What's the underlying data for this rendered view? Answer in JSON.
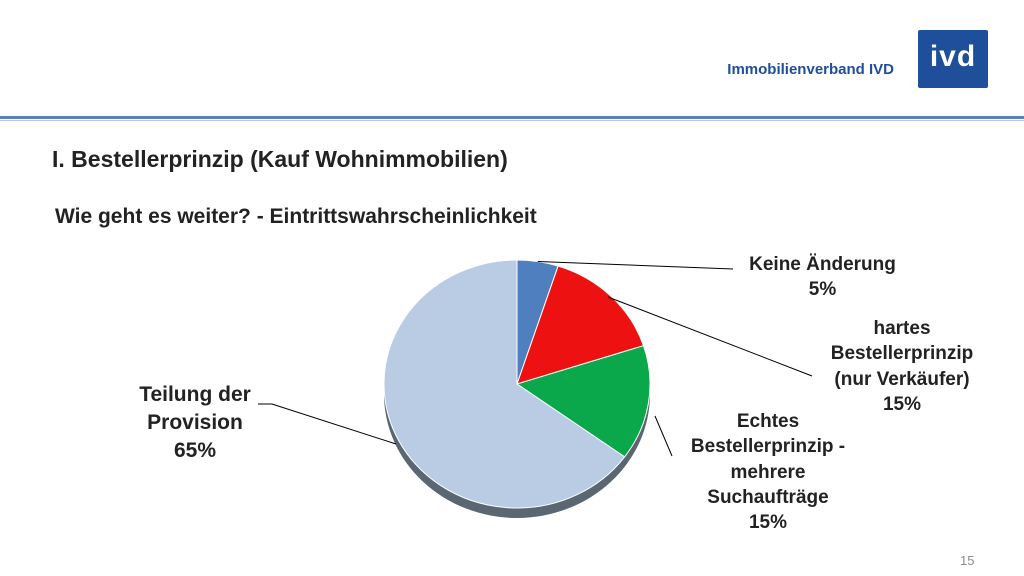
{
  "header": {
    "brand_text": "Immobilienverband IVD",
    "logo_text": "ivd"
  },
  "slide": {
    "title": "I. Bestellerprinzip (Kauf Wohnimmobilien)",
    "subtitle": "Wie geht es weiter? - Eintrittswahrscheinlichkeit",
    "page_number": "15"
  },
  "chart_data": {
    "type": "pie",
    "categories": [
      "Keine Änderung",
      "hartes Bestellerprinzip (nur Verkäufer)",
      "Echtes Bestellerprinzip - mehrere Suchaufträge",
      "Teilung der Provision"
    ],
    "values": [
      5,
      15,
      15,
      65
    ],
    "value_labels": [
      "5%",
      "15%",
      "15%",
      "65%"
    ],
    "label_lines": [
      [
        "Keine Änderung"
      ],
      [
        "hartes",
        "Bestellerprinzip",
        "(nur Verkäufer)"
      ],
      [
        "Echtes",
        "Bestellerprinzip -",
        "mehrere",
        "Suchaufträge"
      ],
      [
        "Teilung der",
        "Provision"
      ]
    ],
    "colors": [
      "#4f7fbe",
      "#ee1111",
      "#0aa84a",
      "#b9cce4"
    ],
    "legend": "none"
  }
}
